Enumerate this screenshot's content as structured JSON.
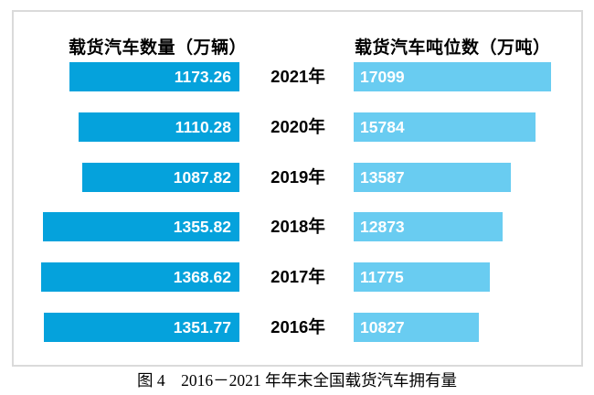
{
  "headers": {
    "left": "载货汽车数量（万辆）",
    "right": "载货汽车吨位数（万吨）"
  },
  "caption": "图 4　2016－2021 年年末全国载货汽车拥有量",
  "colors": {
    "left_bar": "#05a2dc",
    "right_bar": "#69ccf1",
    "bar_value_text": "#ffffff",
    "year_text": "#000000",
    "box_border": "#dadada"
  },
  "chart_data": {
    "type": "bar",
    "variant": "paired-horizontal-diverging",
    "title": "图 4　2016－2021 年年末全国载货汽车拥有量",
    "categories": [
      "2021年",
      "2020年",
      "2019年",
      "2018年",
      "2017年",
      "2016年"
    ],
    "series": [
      {
        "name": "载货汽车数量（万辆）",
        "side": "left",
        "align": "right",
        "color": "#05a2dc",
        "values": [
          1173.26,
          1110.28,
          1087.82,
          1355.82,
          1368.62,
          1351.77
        ],
        "labels": [
          "1173.26",
          "1110.28",
          "1087.82",
          "1355.82",
          "1368.62",
          "1351.77"
        ]
      },
      {
        "name": "载货汽车吨位数（万吨）",
        "side": "right",
        "align": "left",
        "color": "#69ccf1",
        "values": [
          17099,
          15784,
          13587,
          12873,
          11775,
          10827
        ],
        "labels": [
          "17099",
          "15784",
          "13587",
          "12873",
          "11775",
          "10827"
        ]
      }
    ],
    "value_labels_inside_bars": true,
    "grid": false,
    "axis_shown": false,
    "legend_position": "top-as-column-headers"
  }
}
